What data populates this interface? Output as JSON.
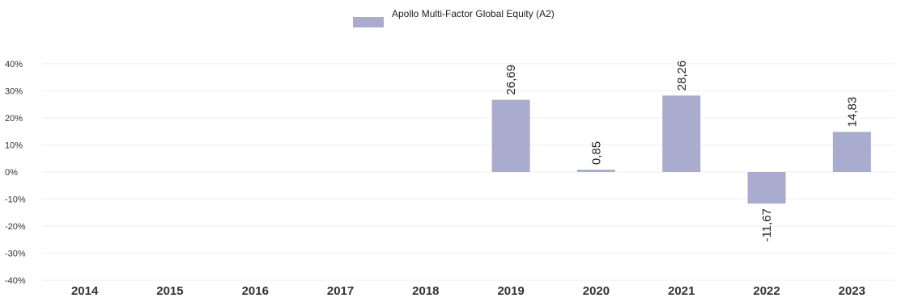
{
  "chart_data": {
    "type": "bar",
    "categories": [
      "2014",
      "2015",
      "2016",
      "2017",
      "2018",
      "2019",
      "2020",
      "2021",
      "2022",
      "2023"
    ],
    "series": [
      {
        "name": "Apollo Multi-Factor Global Equity (A2)",
        "values": [
          null,
          null,
          null,
          null,
          null,
          26.69,
          0.85,
          28.26,
          -11.67,
          14.83
        ],
        "labels": [
          "",
          "",
          "",
          "",
          "",
          "26,69",
          "0,85",
          "28,26",
          "-11,67",
          "14,83"
        ],
        "color": "#a9abcf"
      }
    ],
    "yticks": [
      "40%",
      "30%",
      "20%",
      "10%",
      "0%",
      "-10%",
      "-20%",
      "-30%",
      "-40%"
    ],
    "ylim": [
      -40,
      40
    ],
    "legend_position": "top-center",
    "grid": true
  }
}
